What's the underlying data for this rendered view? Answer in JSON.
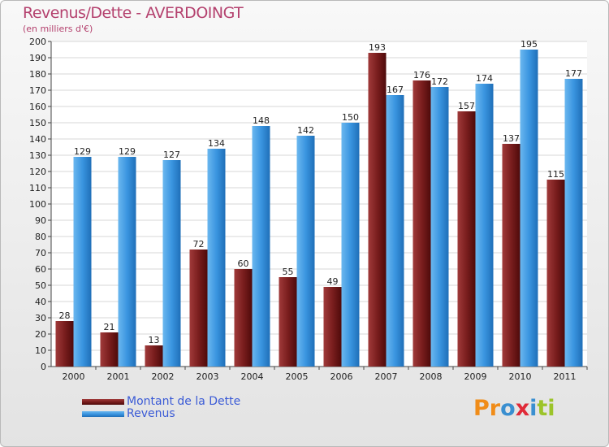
{
  "title": "Revenus/Dette - AVERDOINGT",
  "subtitle": "(en milliers d'€)",
  "logo": {
    "letters": [
      "P",
      "r",
      "o",
      "x",
      "i",
      "t",
      "i"
    ]
  },
  "colors": {
    "title": "#b4416e",
    "dette": "#7a1e1e",
    "revenus": "#3a95e0",
    "legend_text": "#3b5bd6",
    "logo": [
      "#f08c18",
      "#f08c18",
      "#3a8fd0",
      "#e02a38",
      "#3a8fd0",
      "#9cc42a",
      "#9cc42a"
    ]
  },
  "chart_data": {
    "type": "bar",
    "title": "Revenus/Dette - AVERDOINGT",
    "ylabel": "(en milliers d'€)",
    "xlabel": "",
    "ylim": [
      0,
      200
    ],
    "ytick_step": 10,
    "grid": true,
    "legend_position": "bottom-left",
    "categories": [
      "2000",
      "2001",
      "2002",
      "2003",
      "2004",
      "2005",
      "2006",
      "2007",
      "2008",
      "2009",
      "2010",
      "2011"
    ],
    "series": [
      {
        "name": "Montant de la Dette",
        "values": [
          28,
          21,
          13,
          72,
          60,
          55,
          49,
          193,
          176,
          157,
          137,
          115
        ]
      },
      {
        "name": "Revenus",
        "values": [
          129,
          129,
          127,
          134,
          148,
          142,
          150,
          167,
          172,
          174,
          195,
          177
        ]
      }
    ]
  }
}
